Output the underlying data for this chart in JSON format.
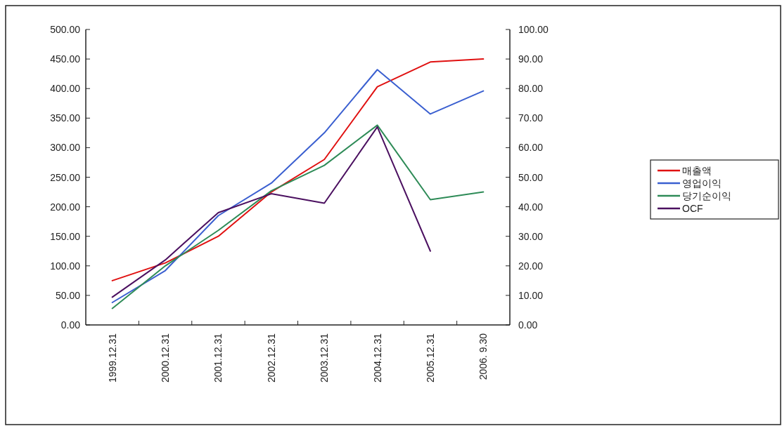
{
  "chart_data": {
    "type": "line",
    "categories": [
      "1999.12.31",
      "2000.12.31",
      "2001.12.31",
      "2002.12.31",
      "2003.12.31",
      "2004.12.31",
      "2005.12.31",
      "2006. 9.30"
    ],
    "ylim": [
      0,
      500
    ],
    "yticks": [
      {
        "value": 0,
        "label": "0.00"
      },
      {
        "value": 50,
        "label": "50.00"
      },
      {
        "value": 100,
        "label": "100.00"
      },
      {
        "value": 150,
        "label": "150.00"
      },
      {
        "value": 200,
        "label": "200.00"
      },
      {
        "value": 250,
        "label": "250.00"
      },
      {
        "value": 300,
        "label": "300.00"
      },
      {
        "value": 350,
        "label": "350.00"
      },
      {
        "value": 400,
        "label": "400.00"
      },
      {
        "value": 450,
        "label": "450.00"
      },
      {
        "value": 500,
        "label": "500.00"
      }
    ],
    "y2lim": [
      0,
      100
    ],
    "y2ticks": [
      {
        "value": 0,
        "label": "0.00"
      },
      {
        "value": 10,
        "label": "10.00"
      },
      {
        "value": 20,
        "label": "20.00"
      },
      {
        "value": 30,
        "label": "30.00"
      },
      {
        "value": 40,
        "label": "40.00"
      },
      {
        "value": 50,
        "label": "50.00"
      },
      {
        "value": 60,
        "label": "60.00"
      },
      {
        "value": 70,
        "label": "70.00"
      },
      {
        "value": 80,
        "label": "80.00"
      },
      {
        "value": 90,
        "label": "90.00"
      },
      {
        "value": 100,
        "label": "100.00"
      }
    ],
    "legend": "right",
    "grid": false,
    "marker": "none",
    "line_style": "solid",
    "series": [
      {
        "name": "매출액",
        "color": "#e01010",
        "values": [
          75,
          105,
          150,
          225,
          280,
          403,
          445,
          450
        ]
      },
      {
        "name": "영업이익",
        "color": "#3a5fd0",
        "axis": "y2",
        "values": [
          7.6,
          18.4,
          37,
          48,
          65,
          86.4,
          71.4,
          79.2
        ]
      },
      {
        "name": "당기순이익",
        "color": "#2e8b57",
        "axis": "y2",
        "values": [
          5.6,
          20,
          32,
          45.4,
          54,
          67.6,
          42.4,
          45
        ]
      },
      {
        "name": "OCF",
        "color": "#4b1060",
        "axis": "y2",
        "values": [
          9.4,
          22,
          38,
          44.4,
          41.2,
          67,
          25,
          null
        ]
      }
    ]
  }
}
